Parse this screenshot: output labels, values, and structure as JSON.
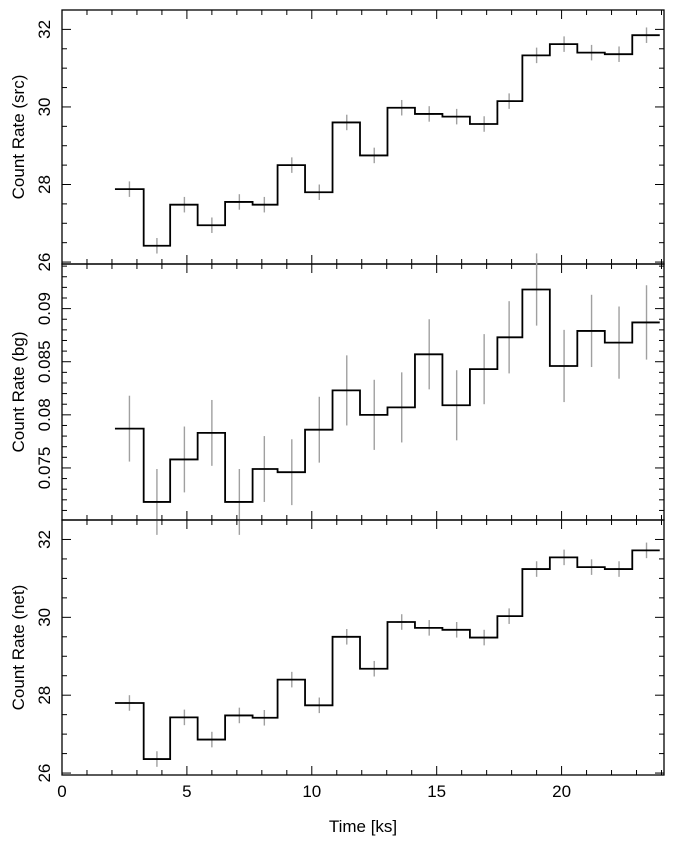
{
  "chart_data": {
    "type": "line",
    "style": "step-histogram with vertical error bars",
    "xlabel": "Time [ks]",
    "xlim": [
      0,
      24.1
    ],
    "xticks": [
      0,
      5,
      10,
      15,
      20
    ],
    "x_minor_step": 1,
    "bin_edges": [
      2.12,
      3.27,
      4.33,
      5.43,
      6.53,
      7.63,
      8.63,
      9.73,
      10.83,
      11.93,
      13.03,
      14.13,
      15.23,
      16.33,
      17.43,
      18.43,
      19.53,
      20.63,
      21.73,
      22.83,
      23.93
    ],
    "x": [
      2.7,
      3.8,
      4.9,
      6.0,
      7.1,
      8.1,
      9.2,
      10.3,
      11.4,
      12.5,
      13.6,
      14.7,
      15.8,
      16.9,
      17.9,
      19.0,
      20.1,
      21.2,
      22.3,
      23.4
    ],
    "panels": [
      {
        "ylabel": "Count Rate (src)",
        "ylim": [
          25.95,
          32.5
        ],
        "yticks": [
          "26",
          "28",
          "30",
          "32"
        ],
        "ytick_values": [
          26,
          28,
          30,
          32
        ],
        "y_minor_step": 0.5,
        "values": [
          27.88,
          26.42,
          27.48,
          26.95,
          27.55,
          27.48,
          28.5,
          27.8,
          29.6,
          28.75,
          29.98,
          29.82,
          29.75,
          29.56,
          30.15,
          31.33,
          31.62,
          31.4,
          31.36,
          31.85
        ],
        "errors": [
          0.2,
          0.2,
          0.2,
          0.2,
          0.2,
          0.2,
          0.2,
          0.2,
          0.2,
          0.2,
          0.2,
          0.2,
          0.2,
          0.2,
          0.2,
          0.2,
          0.2,
          0.2,
          0.2,
          0.2
        ]
      },
      {
        "ylabel": "Count Rate (bg)",
        "ylim": [
          0.0701,
          0.0942
        ],
        "yticks": [
          "0.075",
          "0.08",
          "0.085",
          "0.09"
        ],
        "ytick_values": [
          0.075,
          0.08,
          0.085,
          0.09
        ],
        "y_minor_step": 0.001,
        "values": [
          0.0787,
          0.0718,
          0.0758,
          0.0783,
          0.0718,
          0.0749,
          0.0746,
          0.0786,
          0.0823,
          0.08,
          0.0807,
          0.0857,
          0.0809,
          0.0843,
          0.0873,
          0.0918,
          0.0846,
          0.0879,
          0.0868,
          0.0887
        ],
        "errors": [
          0.0031,
          0.0031,
          0.0031,
          0.0031,
          0.0031,
          0.0031,
          0.0031,
          0.0031,
          0.0033,
          0.0033,
          0.0033,
          0.0033,
          0.0033,
          0.0033,
          0.0034,
          0.0034,
          0.0034,
          0.0034,
          0.0034,
          0.0035
        ]
      },
      {
        "ylabel": "Count Rate (net)",
        "ylim": [
          25.95,
          32.5
        ],
        "yticks": [
          "26",
          "28",
          "30",
          "32"
        ],
        "ytick_values": [
          26,
          28,
          30,
          32
        ],
        "y_minor_step": 0.5,
        "values": [
          27.8,
          26.36,
          27.43,
          26.86,
          27.48,
          27.42,
          28.4,
          27.74,
          29.5,
          28.68,
          29.88,
          29.73,
          29.68,
          29.48,
          30.03,
          31.24,
          31.54,
          31.29,
          31.24,
          31.72
        ],
        "errors": [
          0.2,
          0.2,
          0.2,
          0.2,
          0.2,
          0.2,
          0.2,
          0.2,
          0.2,
          0.2,
          0.2,
          0.2,
          0.2,
          0.2,
          0.2,
          0.2,
          0.2,
          0.2,
          0.2,
          0.2
        ]
      }
    ],
    "colors": {
      "step_line": "#000000",
      "error_bars": "#a0a0a0",
      "axes": "#000000"
    },
    "grid": false,
    "legend": "none"
  }
}
